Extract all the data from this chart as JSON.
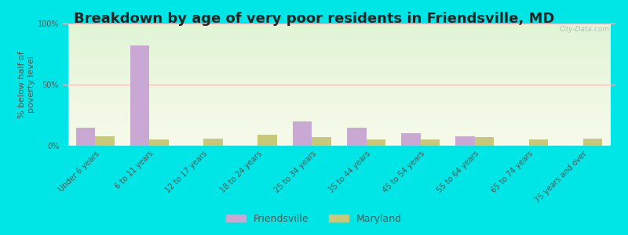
{
  "title": "Breakdown by age of very poor residents in Friendsville, MD",
  "ylabel": "% below half of\npoverty level",
  "categories": [
    "Under 6 years",
    "6 to 11 years",
    "12 to 17 years",
    "18 to 24 years",
    "25 to 34 years",
    "35 to 44 years",
    "45 to 54 years",
    "55 to 64 years",
    "65 to 74 years",
    "75 years and over"
  ],
  "friendsville_values": [
    15,
    82,
    0,
    0,
    20,
    15,
    10,
    8,
    0,
    0
  ],
  "maryland_values": [
    8,
    5,
    6,
    9,
    7,
    5,
    5,
    7,
    5,
    6
  ],
  "friendsville_color": "#c9a8d4",
  "maryland_color": "#c8c87a",
  "outer_bg": "#00e5e5",
  "ylim": [
    0,
    100
  ],
  "yticks": [
    0,
    50,
    100
  ],
  "ytick_labels": [
    "0%",
    "50%",
    "100%"
  ],
  "title_fontsize": 13,
  "axis_label_fontsize": 8,
  "tick_label_fontsize": 7,
  "bar_width": 0.35,
  "legend_labels": [
    "Friendsville",
    "Maryland"
  ],
  "watermark": "City-Data.com"
}
